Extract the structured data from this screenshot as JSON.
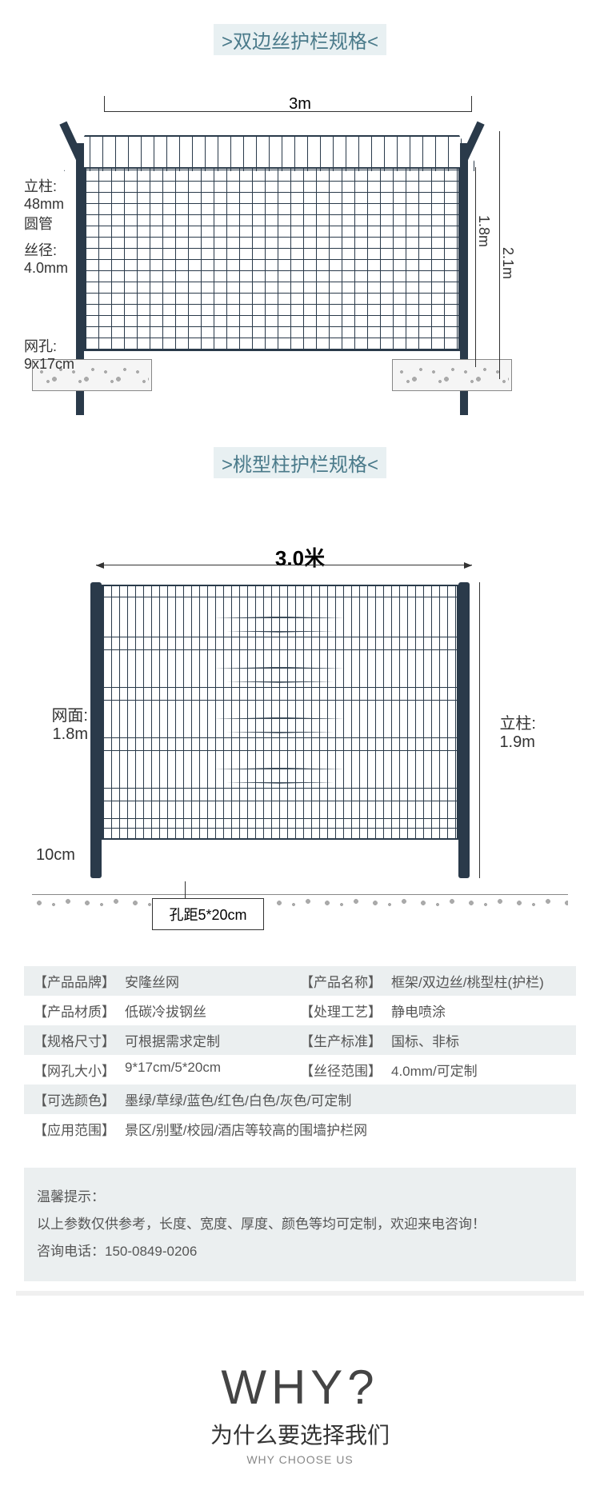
{
  "section1": {
    "title": ">双边丝护栏规格<",
    "width": "3m",
    "post_label": "立柱:\n48mm\n圆管",
    "wire_label": "丝径:\n4.0mm",
    "mesh_label": "网孔:\n9x17cm",
    "height_inner": "1.8m",
    "height_outer": "2.1m",
    "colors": {
      "fence": "#2a3a4a",
      "foundation": "#f5f5f5"
    }
  },
  "section2": {
    "title": ">桃型柱护栏规格<",
    "width": "3.0米",
    "mesh_label": "网面:\n1.8m",
    "post_label": "立柱:\n1.9m",
    "gap_label": "10cm",
    "hole_label": "孔距5*20cm",
    "bend_positions_pct": [
      12,
      32,
      52,
      72
    ],
    "hwire_positions_pct": [
      4,
      20,
      25,
      40,
      45,
      60,
      65,
      80,
      85,
      92,
      96
    ]
  },
  "specs": {
    "rows": [
      {
        "shaded": true,
        "left_key": "【产品品牌】",
        "left_val": "安隆丝网",
        "right_key": "【产品名称】",
        "right_val": "框架/双边丝/桃型柱(护栏)"
      },
      {
        "shaded": false,
        "left_key": "【产品材质】",
        "left_val": "低碳冷拔钢丝",
        "right_key": "【处理工艺】",
        "right_val": "静电喷涂"
      },
      {
        "shaded": true,
        "left_key": "【规格尺寸】",
        "left_val": "可根据需求定制",
        "right_key": "【生产标准】",
        "right_val": "国标、非标"
      },
      {
        "shaded": false,
        "left_key": "【网孔大小】",
        "left_val": "9*17cm/5*20cm",
        "right_key": "【丝径范围】",
        "right_val": "4.0mm/可定制"
      },
      {
        "shaded": true,
        "left_key": "【可选颜色】",
        "left_val": "墨绿/草绿/蓝色/红色/白色/灰色/可定制",
        "right_key": "",
        "right_val": ""
      },
      {
        "shaded": false,
        "left_key": "【应用范围】",
        "left_val": "景区/别墅/校园/酒店等较高的围墙护栏网",
        "right_key": "",
        "right_val": ""
      }
    ]
  },
  "notice": {
    "title": "温馨提示：",
    "body": "以上参数仅供参考，长度、宽度、厚度、颜色等均可定制，欢迎来电咨询！",
    "phone_label": "咨询电话：",
    "phone": "150-0849-0206"
  },
  "why": {
    "big": "WHY?",
    "cn": "为什么要选择我们",
    "en": "WHY CHOOSE US"
  },
  "palette": {
    "title_bg": "#e8f0f2",
    "title_color": "#4a7a8a",
    "shade": "#ebeff0",
    "text": "#555555"
  }
}
